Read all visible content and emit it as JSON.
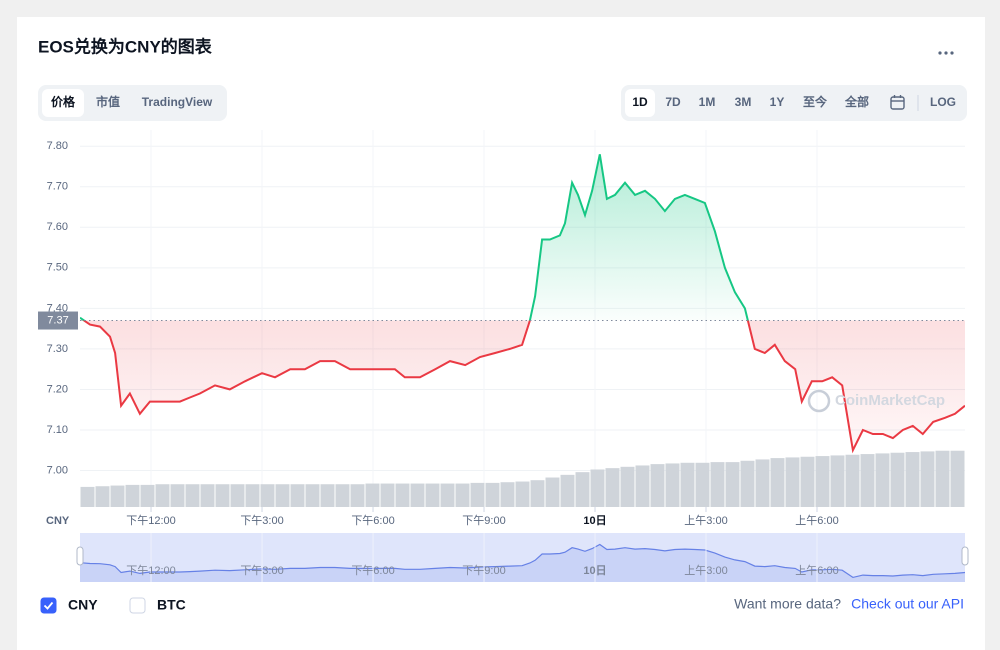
{
  "header": {
    "title": "EOS兑换为CNY的图表"
  },
  "tabs": [
    "价格",
    "市值",
    "TradingView"
  ],
  "selected_tab": 0,
  "ranges": [
    "1D",
    "7D",
    "1M",
    "3M",
    "1Y",
    "至今",
    "全部",
    "LOG"
  ],
  "selected_range": 0,
  "chart_data": {
    "type": "line",
    "y_label": "CNY",
    "watermark": "CoinMarketCap",
    "up_color": "#16c784",
    "down_color": "#ea3943",
    "reference": 7.37,
    "x": [
      10.08,
      10.35,
      10.62,
      10.89,
      11.03,
      11.19,
      11.43,
      11.7,
      11.97,
      12.24,
      12.51,
      12.78,
      13.05,
      13.32,
      13.73,
      14.13,
      14.54,
      15.0,
      15.35,
      15.76,
      16.16,
      16.57,
      16.97,
      17.38,
      17.78,
      18.19,
      18.59,
      18.86,
      19.27,
      19.68,
      20.08,
      20.49,
      20.89,
      21.3,
      21.7,
      22.03,
      22.24,
      22.38,
      22.57,
      22.78,
      23.05,
      23.19,
      23.38,
      23.54,
      23.73,
      23.92,
      24.13,
      24.32,
      24.54,
      24.81,
      25.08,
      25.35,
      25.62,
      25.89,
      26.16,
      26.43,
      26.7,
      26.97,
      27.24,
      27.51,
      27.78,
      28.05,
      28.32,
      28.59,
      28.86,
      29.13,
      29.41,
      29.59,
      29.86,
      30.14,
      30.41,
      30.68,
      30.97,
      31.24,
      31.51,
      31.78,
      32.05,
      32.32,
      32.59,
      32.86,
      33.14,
      33.46,
      33.73,
      34.0
    ],
    "values": [
      7.377,
      7.36,
      7.355,
      7.33,
      7.29,
      7.16,
      7.19,
      7.14,
      7.17,
      7.17,
      7.17,
      7.17,
      7.18,
      7.19,
      7.21,
      7.2,
      7.22,
      7.24,
      7.23,
      7.25,
      7.25,
      7.27,
      7.27,
      7.25,
      7.25,
      7.25,
      7.25,
      7.23,
      7.23,
      7.25,
      7.27,
      7.26,
      7.28,
      7.29,
      7.3,
      7.31,
      7.37,
      7.43,
      7.57,
      7.57,
      7.58,
      7.61,
      7.71,
      7.68,
      7.63,
      7.69,
      7.78,
      7.67,
      7.68,
      7.71,
      7.68,
      7.69,
      7.67,
      7.64,
      7.67,
      7.68,
      7.67,
      7.66,
      7.59,
      7.5,
      7.44,
      7.4,
      7.3,
      7.29,
      7.31,
      7.27,
      7.25,
      7.17,
      7.22,
      7.22,
      7.23,
      7.21,
      7.05,
      7.1,
      7.09,
      7.09,
      7.08,
      7.1,
      7.11,
      7.09,
      7.12,
      7.13,
      7.14,
      7.16
    ],
    "xlim": [
      10.08,
      34.0
    ],
    "ylim": [
      6.91,
      7.84
    ],
    "xticks": [
      {
        "value": 12,
        "label": "下午12:00"
      },
      {
        "value": 15,
        "label": "下午3:00"
      },
      {
        "value": 18,
        "label": "下午6:00"
      },
      {
        "value": 21,
        "label": "下午9:00"
      },
      {
        "value": 24,
        "label": "10日"
      },
      {
        "value": 27,
        "label": "上午3:00"
      },
      {
        "value": 30,
        "label": "上午6:00"
      }
    ],
    "yticks": [
      {
        "value": 7,
        "label": "7.00"
      },
      {
        "value": 7.1,
        "label": "7.10"
      },
      {
        "value": 7.2,
        "label": "7.20"
      },
      {
        "value": 7.3,
        "label": "7.30"
      },
      {
        "value": 7.4,
        "label": "7.40"
      },
      {
        "value": 7.5,
        "label": "7.50"
      },
      {
        "value": 7.6,
        "label": "7.60"
      },
      {
        "value": 7.7,
        "label": "7.70"
      },
      {
        "value": 7.8,
        "label": "7.80"
      }
    ],
    "grid": true,
    "volume": {
      "color": "#cfd4da",
      "ylim": [
        0,
        100
      ],
      "values": [
        30,
        31,
        32,
        33,
        33,
        34,
        34,
        34,
        34,
        34,
        34,
        34,
        34,
        34,
        34,
        34,
        34,
        34,
        34,
        35,
        35,
        35,
        35,
        35,
        35,
        35,
        36,
        36,
        37,
        38,
        40,
        44,
        48,
        52,
        56,
        58,
        60,
        62,
        64,
        65,
        66,
        66,
        67,
        67,
        69,
        71,
        73,
        74,
        75,
        76,
        77,
        78,
        79,
        80,
        81,
        82,
        83,
        84,
        84
      ]
    }
  },
  "toggles": [
    {
      "label": "CNY",
      "checked": true
    },
    {
      "label": "BTC",
      "checked": false
    }
  ],
  "footer": {
    "prompt": "Want more data?",
    "link": "Check out our API"
  }
}
